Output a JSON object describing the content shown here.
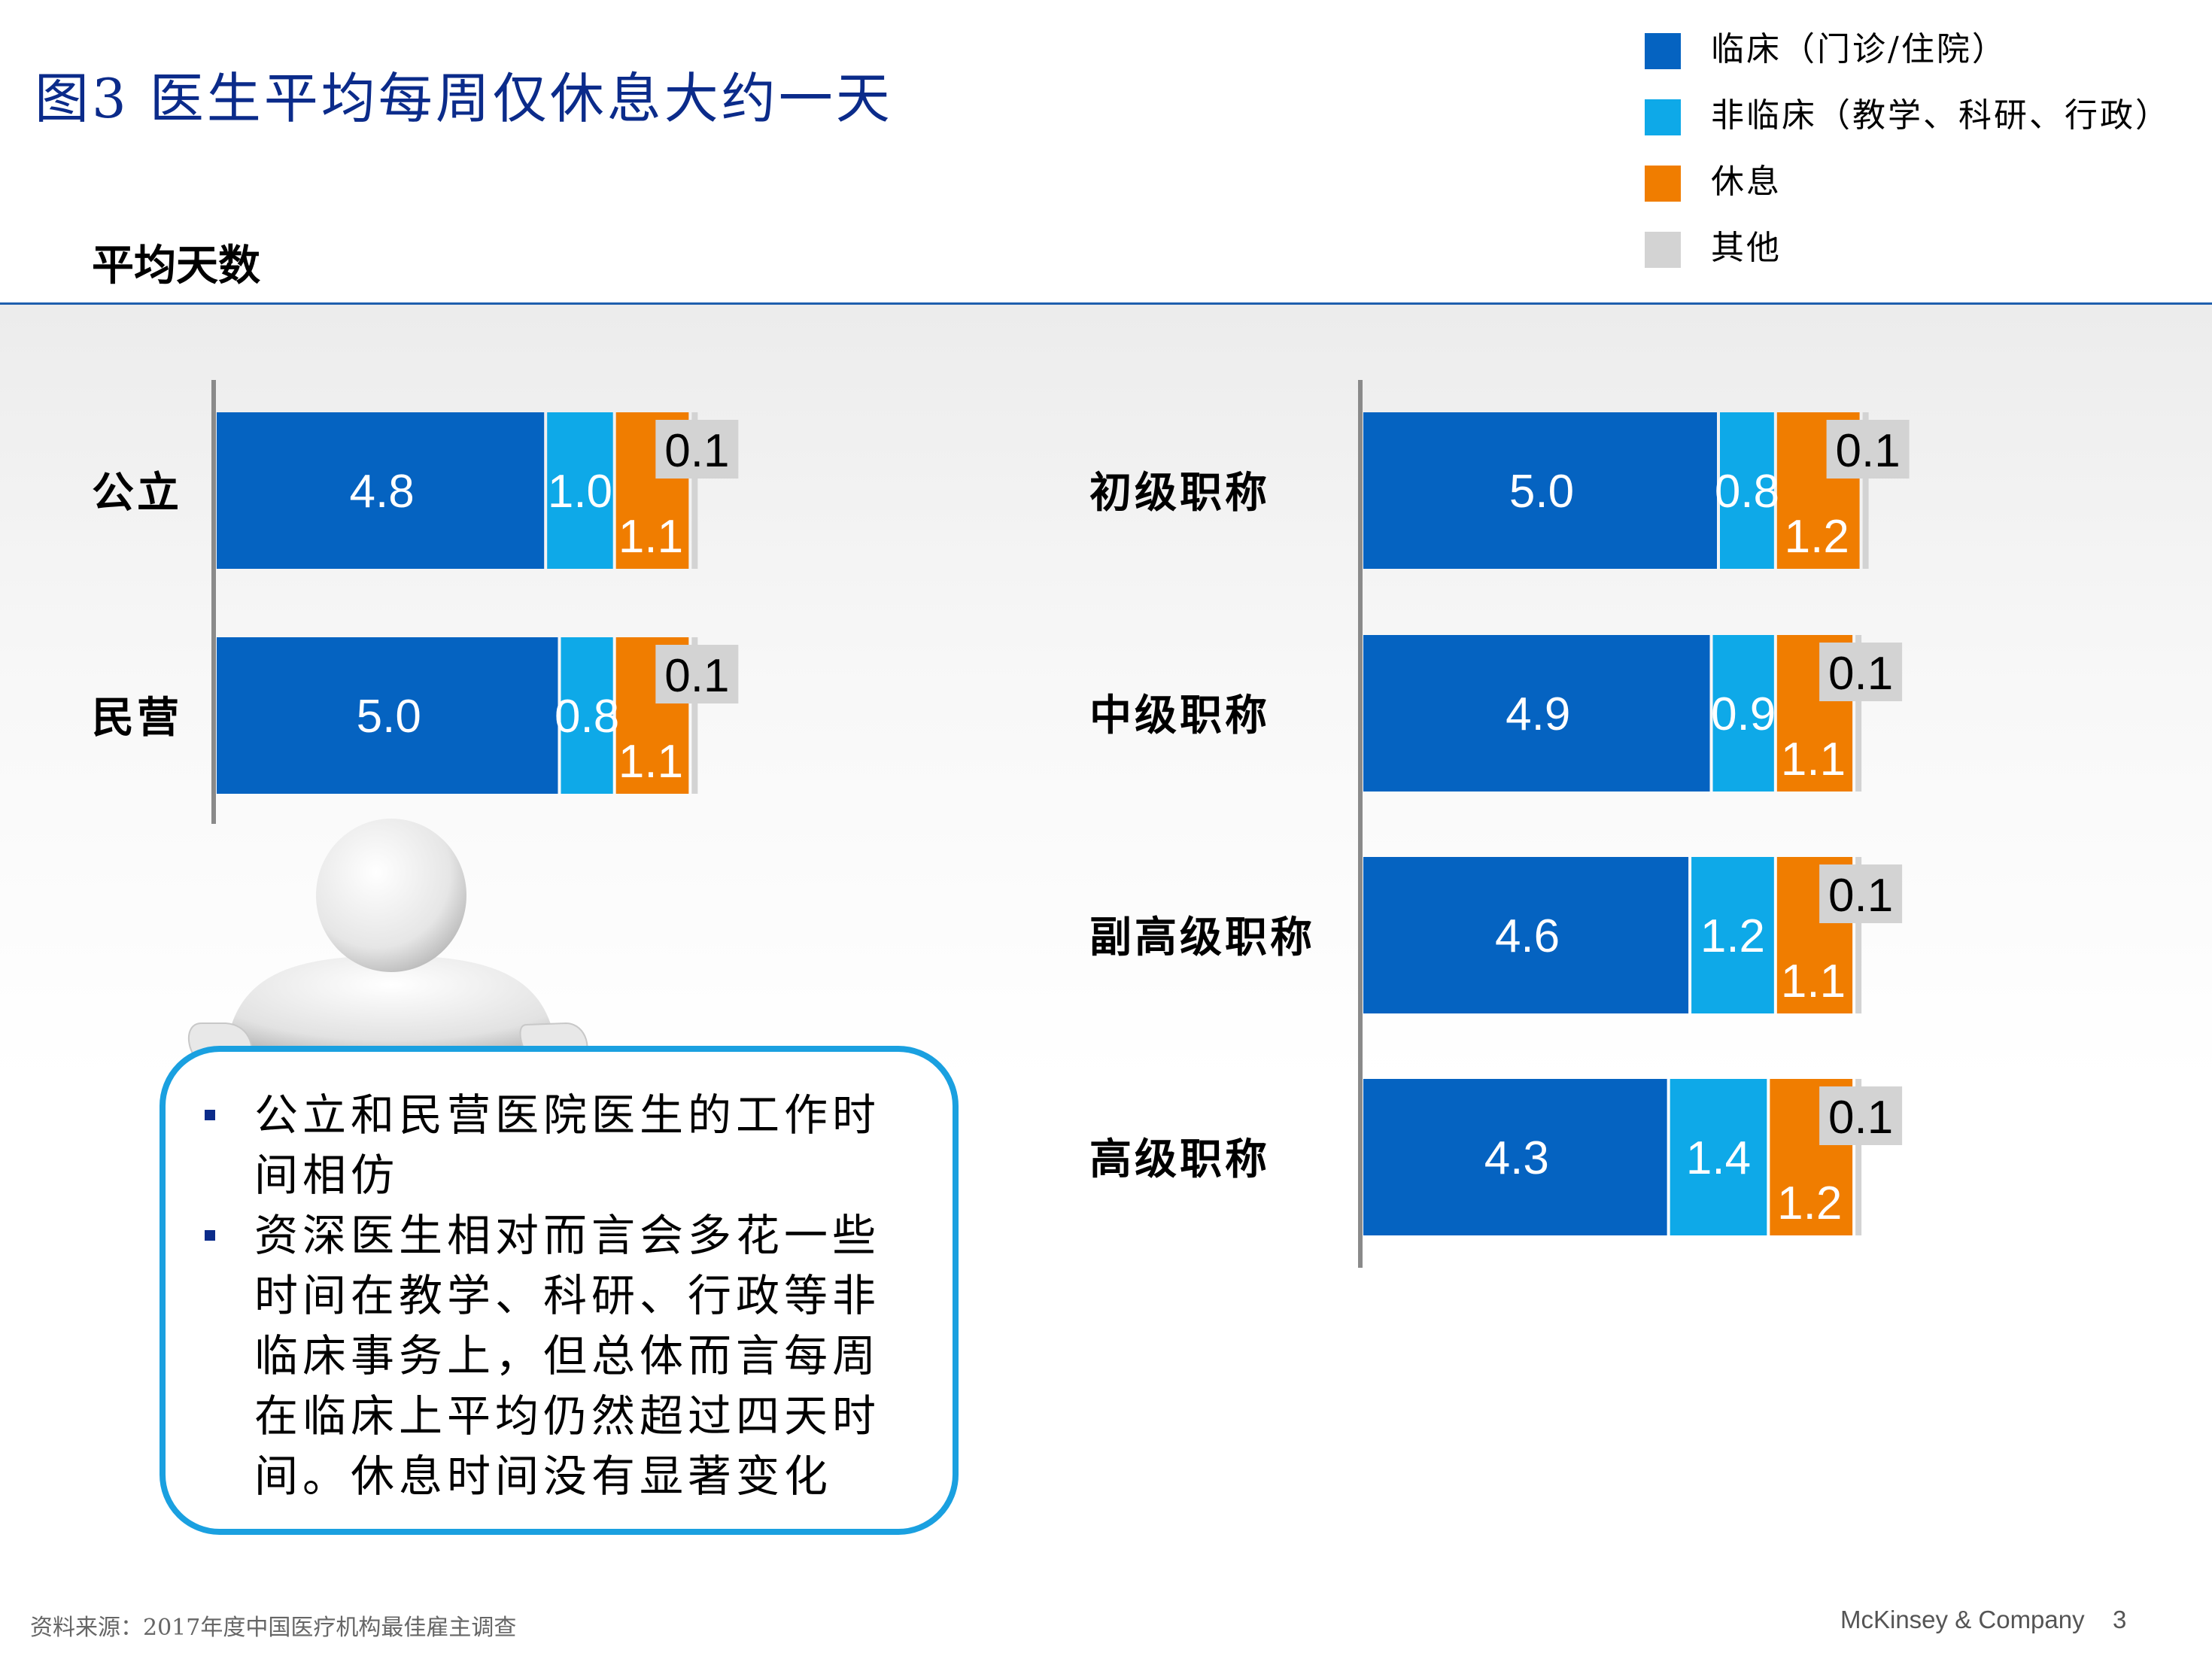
{
  "title": "图3 医生平均每周仅休息大约一天",
  "subtitle": "平均天数",
  "colors": {
    "clinical": "#0563c1",
    "nonclinical": "#0ea9e8",
    "rest": "#f07d00",
    "other": "#d3d3d3"
  },
  "legend": [
    {
      "label": "临床（门诊/住院）",
      "color": "#0563c1"
    },
    {
      "label": "非临床（教学、科研、行政）",
      "color": "#0ea9e8"
    },
    {
      "label": "休息",
      "color": "#f07d00"
    },
    {
      "label": "其他",
      "color": "#d3d3d3"
    }
  ],
  "chart_data": [
    {
      "type": "bar",
      "orientation": "horizontal",
      "stacked": true,
      "categories": [
        "公立",
        "民营"
      ],
      "series": [
        {
          "name": "临床（门诊/住院）",
          "values": [
            4.8,
            5.0
          ]
        },
        {
          "name": "非临床（教学、科研、行政）",
          "values": [
            1.0,
            0.8
          ]
        },
        {
          "name": "休息",
          "values": [
            1.1,
            1.1
          ]
        },
        {
          "name": "其他",
          "values": [
            0.1,
            0.1
          ]
        }
      ]
    },
    {
      "type": "bar",
      "orientation": "horizontal",
      "stacked": true,
      "categories": [
        "初级职称",
        "中级职称",
        "副高级职称",
        "高级职称"
      ],
      "series": [
        {
          "name": "临床（门诊/住院）",
          "values": [
            5.0,
            4.9,
            4.6,
            4.3
          ]
        },
        {
          "name": "非临床（教学、科研、行政）",
          "values": [
            0.8,
            0.9,
            1.2,
            1.4
          ]
        },
        {
          "name": "休息",
          "values": [
            1.2,
            1.1,
            1.1,
            1.2
          ]
        },
        {
          "name": "其他",
          "values": [
            0.1,
            0.1,
            0.1,
            0.1
          ]
        }
      ]
    }
  ],
  "callout": {
    "bullets": [
      "公立和民营医院医生的工作时间相仿",
      "资深医生相对而言会多花一些时间在教学、科研、行政等非临床事务上，但总体而言每周在临床上平均仍然超过四天时间。休息时间没有显著变化"
    ]
  },
  "footer": {
    "source": "资料来源：2017年度中国医疗机构最佳雇主调查",
    "brand": "McKinsey & Company",
    "page": "3"
  }
}
